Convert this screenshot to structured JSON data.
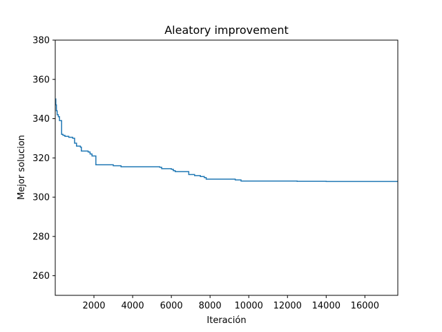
{
  "chart_data": {
    "type": "line",
    "title": "Aleatory improvement",
    "xlabel": "Iteración",
    "ylabel": "Mejor solucion",
    "xlim": [
      1,
      17700
    ],
    "ylim": [
      250,
      380
    ],
    "xticks": [
      2000,
      4000,
      6000,
      8000,
      10000,
      12000,
      14000,
      16000
    ],
    "yticks": [
      260,
      280,
      300,
      320,
      340,
      360,
      380
    ],
    "grid": false,
    "legend": "none",
    "series": [
      {
        "color": "#1f77b4",
        "step": true,
        "points": [
          [
            1,
            350
          ],
          [
            30,
            347
          ],
          [
            60,
            344
          ],
          [
            100,
            342
          ],
          [
            160,
            341
          ],
          [
            220,
            339
          ],
          [
            300,
            339
          ],
          [
            330,
            332
          ],
          [
            400,
            331.5
          ],
          [
            500,
            331
          ],
          [
            700,
            330.5
          ],
          [
            900,
            330
          ],
          [
            1000,
            327.5
          ],
          [
            1100,
            326
          ],
          [
            1300,
            325.5
          ],
          [
            1350,
            323.5
          ],
          [
            1700,
            323
          ],
          [
            1800,
            322
          ],
          [
            1900,
            321
          ],
          [
            2100,
            316.5
          ],
          [
            3000,
            316
          ],
          [
            3400,
            315.5
          ],
          [
            5400,
            315.2
          ],
          [
            5500,
            314.5
          ],
          [
            6000,
            314.2
          ],
          [
            6100,
            313.5
          ],
          [
            6200,
            313
          ],
          [
            6900,
            311.5
          ],
          [
            7200,
            311
          ],
          [
            7500,
            310.5
          ],
          [
            7700,
            310
          ],
          [
            7800,
            309.2
          ],
          [
            9300,
            308.8
          ],
          [
            9600,
            308.2
          ],
          [
            12500,
            308.1
          ],
          [
            14000,
            308.0
          ],
          [
            17700,
            308.0
          ]
        ]
      }
    ]
  }
}
